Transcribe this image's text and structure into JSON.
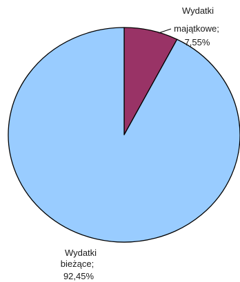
{
  "chart_data": {
    "type": "pie",
    "slices": [
      {
        "name": "Wydatki majątkowe",
        "value": 7.55,
        "label_lines": [
          "Wydatki",
          "majątkowe;",
          "7,55%"
        ],
        "color": "#993366"
      },
      {
        "name": "Wydatki bieżące",
        "value": 92.45,
        "label_lines": [
          "Wydatki",
          "bieżące;",
          "92,45%"
        ],
        "color": "#99ccff"
      }
    ],
    "start": "12 o'clock",
    "direction": "clockwise",
    "legend": "none",
    "outline_color": "#000000"
  }
}
